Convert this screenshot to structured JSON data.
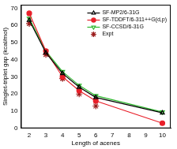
{
  "chart_data": {
    "type": "line",
    "x_label": "Length of acenes",
    "y_label": "Singlet-triplet gap (kcal/mol)",
    "xlim": [
      1.5,
      10.5
    ],
    "xticks": [
      2,
      3,
      4,
      5,
      6,
      7,
      8,
      9,
      10
    ],
    "ylim": [
      0,
      72
    ],
    "yticks": [
      0,
      10,
      20,
      30,
      40,
      50,
      60,
      70
    ],
    "grid": false,
    "legend": "top-right",
    "series": [
      {
        "name": "SF-MP2/6-31G",
        "color": "#000000",
        "marker": "triangle",
        "line_style": "solid",
        "x": [
          2,
          3,
          4,
          5,
          6,
          10
        ],
        "values": [
          63,
          44,
          32,
          24,
          18,
          9
        ]
      },
      {
        "name": "SF-TDDFT/6-311++G(d,p)",
        "color": "#e8202a",
        "marker": "circle",
        "line_style": "solid",
        "x": [
          2,
          3,
          4,
          5,
          6,
          10
        ],
        "values": [
          67,
          45,
          30,
          22,
          16,
          3
        ]
      },
      {
        "name": "SF-CCSD/6-31G",
        "color": "#2eb82e",
        "marker": "triangle-down",
        "line_style": "solid",
        "x": [
          2,
          3,
          4,
          5,
          6,
          10
        ],
        "values": [
          64,
          45,
          33,
          25,
          19,
          9.5
        ]
      },
      {
        "name": "Expt",
        "color": "#9b1c1c",
        "marker": "star",
        "line_style": "none",
        "x": [
          2,
          3,
          4,
          5,
          6
        ],
        "values": [
          61,
          43,
          29,
          20,
          13
        ]
      }
    ]
  }
}
